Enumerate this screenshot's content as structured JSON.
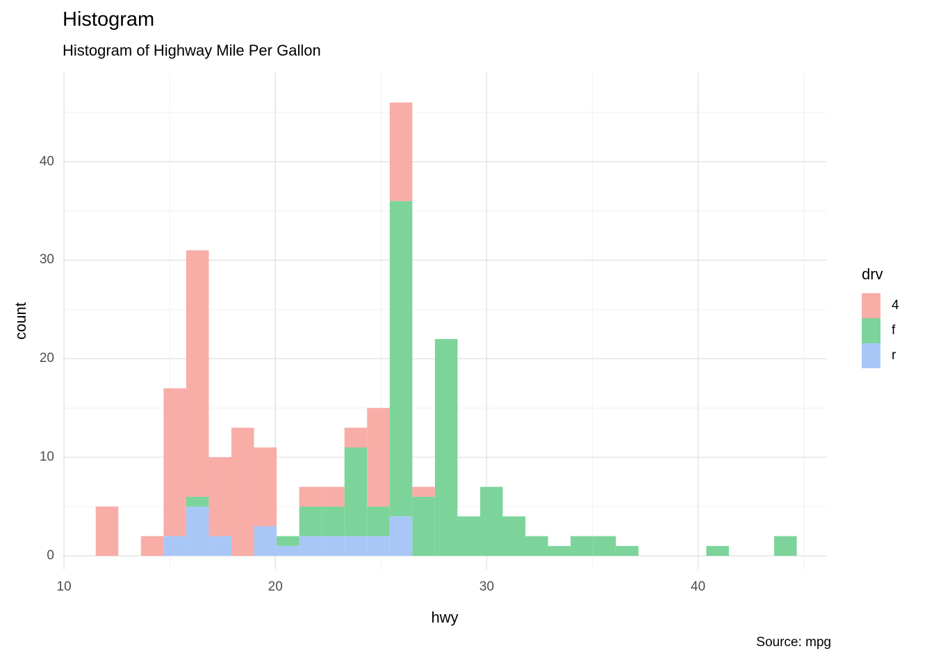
{
  "chart_data": {
    "type": "bar",
    "variant": "stacked-histogram",
    "title": "Histogram",
    "subtitle": "Histogram of Highway Mile Per Gallon",
    "caption": "Source: mpg",
    "xlabel": "hwy",
    "ylabel": "count",
    "grid": true,
    "legend_position": "right",
    "x_ticks": [
      10,
      20,
      30,
      40
    ],
    "x_minor_ticks": [
      15,
      25,
      35,
      45
    ],
    "y_ticks": [
      0,
      10,
      20,
      30,
      40
    ],
    "y_minor_ticks": [
      5,
      15,
      25,
      35,
      45
    ],
    "xlim": [
      9.93,
      46.1
    ],
    "ylim": [
      -1.41,
      49.0
    ],
    "binwidth": 1.07,
    "stack_order": [
      "r",
      "f",
      "4"
    ],
    "legend": {
      "title": "drv",
      "items": [
        {
          "label": "4",
          "color": "#F8ADA7"
        },
        {
          "label": "f",
          "color": "#7CD49A"
        },
        {
          "label": "r",
          "color": "#A8C7F7"
        }
      ]
    },
    "grid_colors": {
      "major": "#e3e3e3",
      "minor": "#f0f0f0"
    },
    "bins": [
      {
        "x0": 11.5,
        "counts": {
          "r": 0,
          "f": 0,
          "4": 5
        }
      },
      {
        "x0": 13.64,
        "counts": {
          "r": 0,
          "f": 0,
          "4": 2
        }
      },
      {
        "x0": 14.71,
        "counts": {
          "r": 2,
          "f": 0,
          "4": 15
        }
      },
      {
        "x0": 15.78,
        "counts": {
          "r": 5,
          "f": 1,
          "4": 25
        }
      },
      {
        "x0": 16.85,
        "counts": {
          "r": 2,
          "f": 0,
          "4": 8
        }
      },
      {
        "x0": 17.92,
        "counts": {
          "r": 0,
          "f": 0,
          "4": 13
        }
      },
      {
        "x0": 18.99,
        "counts": {
          "r": 3,
          "f": 0,
          "4": 8
        }
      },
      {
        "x0": 20.06,
        "counts": {
          "r": 1,
          "f": 1,
          "4": 0
        }
      },
      {
        "x0": 21.13,
        "counts": {
          "r": 2,
          "f": 3,
          "4": 2
        }
      },
      {
        "x0": 22.2,
        "counts": {
          "r": 2,
          "f": 3,
          "4": 2
        }
      },
      {
        "x0": 23.27,
        "counts": {
          "r": 2,
          "f": 9,
          "4": 2
        }
      },
      {
        "x0": 24.34,
        "counts": {
          "r": 2,
          "f": 3,
          "4": 10
        }
      },
      {
        "x0": 25.41,
        "counts": {
          "r": 4,
          "f": 32,
          "4": 10
        }
      },
      {
        "x0": 26.48,
        "counts": {
          "r": 0,
          "f": 6,
          "4": 1
        }
      },
      {
        "x0": 27.55,
        "counts": {
          "r": 0,
          "f": 22,
          "4": 0
        }
      },
      {
        "x0": 28.62,
        "counts": {
          "r": 0,
          "f": 4,
          "4": 0
        }
      },
      {
        "x0": 29.69,
        "counts": {
          "r": 0,
          "f": 7,
          "4": 0
        }
      },
      {
        "x0": 30.76,
        "counts": {
          "r": 0,
          "f": 4,
          "4": 0
        }
      },
      {
        "x0": 31.83,
        "counts": {
          "r": 0,
          "f": 2,
          "4": 0
        }
      },
      {
        "x0": 32.9,
        "counts": {
          "r": 0,
          "f": 1,
          "4": 0
        }
      },
      {
        "x0": 33.97,
        "counts": {
          "r": 0,
          "f": 2,
          "4": 0
        }
      },
      {
        "x0": 35.04,
        "counts": {
          "r": 0,
          "f": 2,
          "4": 0
        }
      },
      {
        "x0": 36.11,
        "counts": {
          "r": 0,
          "f": 1,
          "4": 0
        }
      },
      {
        "x0": 40.39,
        "counts": {
          "r": 0,
          "f": 1,
          "4": 0
        }
      },
      {
        "x0": 43.6,
        "counts": {
          "r": 0,
          "f": 2,
          "4": 0
        }
      }
    ]
  }
}
